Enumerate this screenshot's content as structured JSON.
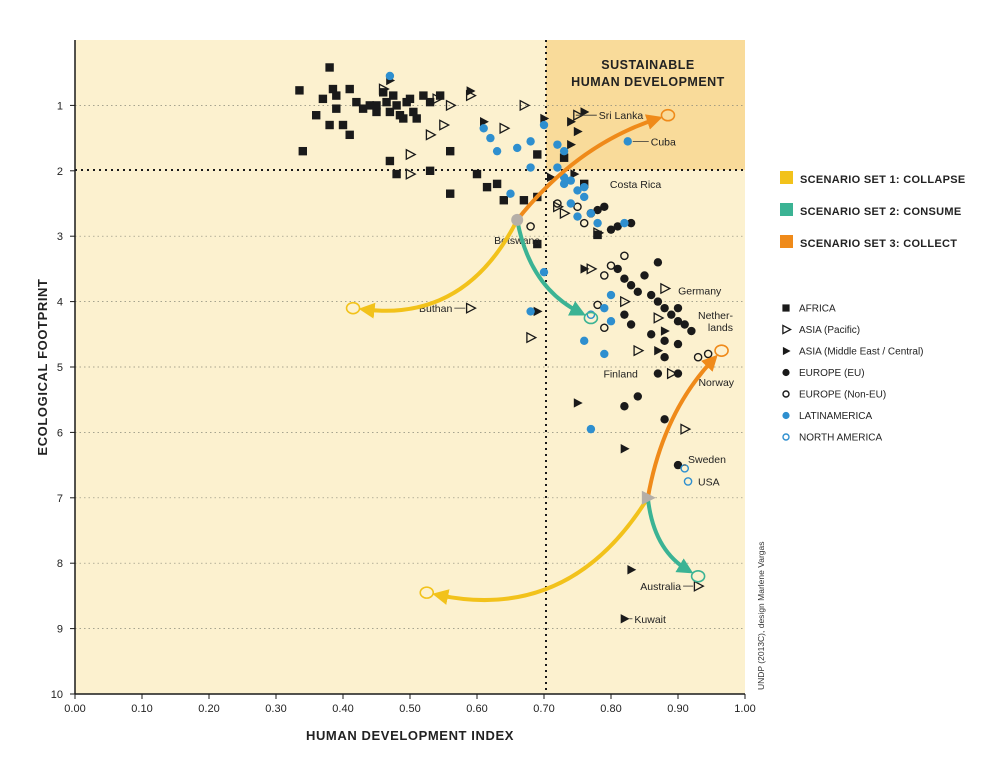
{
  "chart_data": {
    "type": "scatter",
    "xlabel": "HUMAN DEVELOPMENT INDEX",
    "ylabel": "ECOLOGICAL FOOTPRINT",
    "xlim": [
      0,
      1
    ],
    "ylim": [
      10,
      0
    ],
    "y_inverted": true,
    "x_ticks": [
      "0.00",
      "0.10",
      "0.20",
      "0.30",
      "0.40",
      "0.50",
      "0.60",
      "0.70",
      "0.80",
      "0.90",
      "1.00"
    ],
    "y_ticks": [
      "1",
      "2",
      "3",
      "4",
      "5",
      "6",
      "7",
      "8",
      "9",
      "10"
    ],
    "thresholds": {
      "hdi": 0.71,
      "footprint": 2
    },
    "sustainable_label": [
      "SUSTAINABLE",
      "HUMAN DEVELOPMENT"
    ],
    "credit": "UNDP (2013C), design Marlene Vargas",
    "scenario_legend": [
      {
        "label": "SCENARIO SET 1: COLLAPSE",
        "color": "#F2C21B"
      },
      {
        "label": "SCENARIO SET 2: CONSUME",
        "color": "#3BB394"
      },
      {
        "label": "SCENARIO SET 3: COLLECT",
        "color": "#EF8A1A"
      }
    ],
    "region_legend": [
      {
        "key": "africa",
        "label": "AFRICA",
        "marker": "square-filled",
        "color": "#1a1a1a"
      },
      {
        "key": "asia_pacific",
        "label": "ASIA (Pacific)",
        "marker": "triangle-open",
        "color": "#1a1a1a"
      },
      {
        "key": "asia_me",
        "label": "ASIA (Middle East / Central)",
        "marker": "triangle-filled",
        "color": "#1a1a1a"
      },
      {
        "key": "europe_eu",
        "label": "EUROPE (EU)",
        "marker": "circle-filled",
        "color": "#1a1a1a"
      },
      {
        "key": "europe_noneu",
        "label": "EUROPE (Non-EU)",
        "marker": "circle-open",
        "color": "#1a1a1a"
      },
      {
        "key": "latin",
        "label": "LATINAMERICA",
        "marker": "circle-filled",
        "color": "#2E8FCF"
      },
      {
        "key": "north_am",
        "label": "NORTH AMERICA",
        "marker": "circle-open",
        "color": "#2E8FCF"
      }
    ],
    "series": {
      "africa": [
        [
          0.38,
          0.42
        ],
        [
          0.335,
          0.77
        ],
        [
          0.36,
          1.15
        ],
        [
          0.37,
          0.9
        ],
        [
          0.385,
          0.75
        ],
        [
          0.39,
          0.85
        ],
        [
          0.39,
          1.05
        ],
        [
          0.4,
          1.3
        ],
        [
          0.41,
          0.75
        ],
        [
          0.42,
          0.95
        ],
        [
          0.43,
          1.05
        ],
        [
          0.44,
          1.0
        ],
        [
          0.45,
          1.0
        ],
        [
          0.46,
          0.8
        ],
        [
          0.465,
          0.95
        ],
        [
          0.47,
          1.1
        ],
        [
          0.475,
          0.85
        ],
        [
          0.48,
          1.0
        ],
        [
          0.485,
          1.15
        ],
        [
          0.49,
          1.2
        ],
        [
          0.495,
          0.95
        ],
        [
          0.5,
          0.9
        ],
        [
          0.505,
          1.1
        ],
        [
          0.51,
          1.2
        ],
        [
          0.52,
          0.85
        ],
        [
          0.53,
          0.95
        ],
        [
          0.545,
          0.85
        ],
        [
          0.41,
          1.45
        ],
        [
          0.34,
          1.7
        ],
        [
          0.38,
          1.3
        ],
        [
          0.47,
          1.85
        ],
        [
          0.48,
          2.05
        ],
        [
          0.53,
          2.0
        ],
        [
          0.56,
          1.7
        ],
        [
          0.56,
          2.35
        ],
        [
          0.6,
          2.05
        ],
        [
          0.615,
          2.25
        ],
        [
          0.63,
          2.2
        ],
        [
          0.64,
          2.45
        ],
        [
          0.67,
          2.45
        ],
        [
          0.69,
          2.4
        ],
        [
          0.69,
          1.75
        ],
        [
          0.73,
          1.8
        ],
        [
          0.69,
          3.12
        ],
        [
          0.78,
          2.98
        ],
        [
          0.76,
          2.2
        ],
        [
          0.45,
          1.1
        ]
      ],
      "asia_pacific": [
        [
          0.46,
          0.75
        ],
        [
          0.54,
          0.9
        ],
        [
          0.56,
          1.0
        ],
        [
          0.59,
          0.85
        ],
        [
          0.67,
          1.0
        ],
        [
          0.75,
          1.15
        ],
        [
          0.53,
          1.45
        ],
        [
          0.55,
          1.3
        ],
        [
          0.5,
          1.75
        ],
        [
          0.5,
          2.05
        ],
        [
          0.64,
          1.35
        ],
        [
          0.59,
          4.1
        ],
        [
          0.72,
          2.55
        ],
        [
          0.73,
          2.65
        ],
        [
          0.68,
          4.55
        ],
        [
          0.82,
          4.0
        ],
        [
          0.84,
          4.75
        ],
        [
          0.88,
          3.8
        ],
        [
          0.89,
          5.1
        ],
        [
          0.91,
          5.95
        ],
        [
          0.93,
          8.35
        ],
        [
          0.77,
          3.5
        ],
        [
          0.78,
          2.95
        ],
        [
          0.87,
          4.25
        ]
      ],
      "asia_me": [
        [
          0.47,
          0.62
        ],
        [
          0.59,
          0.78
        ],
        [
          0.61,
          1.25
        ],
        [
          0.7,
          1.2
        ],
        [
          0.74,
          1.25
        ],
        [
          0.75,
          1.4
        ],
        [
          0.76,
          1.1
        ],
        [
          0.71,
          2.1
        ],
        [
          0.74,
          1.6
        ],
        [
          0.69,
          4.15
        ],
        [
          0.75,
          5.55
        ],
        [
          0.82,
          6.25
        ],
        [
          0.83,
          8.1
        ],
        [
          0.82,
          8.85
        ],
        [
          0.76,
          3.5
        ],
        [
          0.88,
          4.45
        ],
        [
          0.87,
          4.75
        ],
        [
          0.745,
          2.05
        ]
      ],
      "europe_eu": [
        [
          0.78,
          2.6
        ],
        [
          0.79,
          2.55
        ],
        [
          0.8,
          2.9
        ],
        [
          0.81,
          3.5
        ],
        [
          0.82,
          3.65
        ],
        [
          0.83,
          3.75
        ],
        [
          0.84,
          3.85
        ],
        [
          0.85,
          3.6
        ],
        [
          0.86,
          3.9
        ],
        [
          0.87,
          3.4
        ],
        [
          0.87,
          4.0
        ],
        [
          0.88,
          4.1
        ],
        [
          0.89,
          4.2
        ],
        [
          0.9,
          4.1
        ],
        [
          0.9,
          4.3
        ],
        [
          0.91,
          4.35
        ],
        [
          0.92,
          4.45
        ],
        [
          0.86,
          4.5
        ],
        [
          0.88,
          4.6
        ],
        [
          0.9,
          4.65
        ],
        [
          0.88,
          4.85
        ],
        [
          0.87,
          5.1
        ],
        [
          0.9,
          5.1
        ],
        [
          0.84,
          5.45
        ],
        [
          0.82,
          5.6
        ],
        [
          0.88,
          5.8
        ],
        [
          0.9,
          6.5
        ],
        [
          0.81,
          2.85
        ],
        [
          0.83,
          2.8
        ],
        [
          0.82,
          4.2
        ],
        [
          0.83,
          4.35
        ]
      ],
      "europe_noneu": [
        [
          0.72,
          2.5
        ],
        [
          0.75,
          2.55
        ],
        [
          0.76,
          2.8
        ],
        [
          0.77,
          2.65
        ],
        [
          0.79,
          3.6
        ],
        [
          0.8,
          3.45
        ],
        [
          0.82,
          3.3
        ],
        [
          0.78,
          4.05
        ],
        [
          0.79,
          4.4
        ],
        [
          0.93,
          4.85
        ],
        [
          0.945,
          4.8
        ],
        [
          0.68,
          2.85
        ]
      ],
      "latin": [
        [
          0.47,
          0.55
        ],
        [
          0.61,
          1.35
        ],
        [
          0.62,
          1.5
        ],
        [
          0.63,
          1.7
        ],
        [
          0.66,
          1.65
        ],
        [
          0.68,
          1.55
        ],
        [
          0.7,
          1.3
        ],
        [
          0.72,
          1.6
        ],
        [
          0.73,
          1.7
        ],
        [
          0.72,
          1.95
        ],
        [
          0.73,
          2.1
        ],
        [
          0.74,
          2.15
        ],
        [
          0.75,
          2.3
        ],
        [
          0.76,
          2.4
        ],
        [
          0.74,
          2.5
        ],
        [
          0.75,
          2.7
        ],
        [
          0.77,
          2.65
        ],
        [
          0.78,
          2.8
        ],
        [
          0.76,
          2.25
        ],
        [
          0.73,
          2.2
        ],
        [
          0.79,
          4.1
        ],
        [
          0.8,
          4.3
        ],
        [
          0.76,
          4.6
        ],
        [
          0.79,
          4.8
        ],
        [
          0.7,
          3.55
        ],
        [
          0.8,
          3.9
        ],
        [
          0.82,
          2.8
        ],
        [
          0.68,
          1.95
        ],
        [
          0.825,
          1.55
        ],
        [
          0.68,
          4.15
        ],
        [
          0.77,
          5.95
        ],
        [
          0.65,
          2.35
        ]
      ],
      "north_am": [
        [
          0.91,
          6.55
        ],
        [
          0.915,
          6.75
        ],
        [
          0.77,
          4.2
        ]
      ]
    },
    "annotations": [
      {
        "text": "Sri Lanka",
        "x": 0.74,
        "y": 1.15
      },
      {
        "text": "Cuba",
        "x": 0.825,
        "y": 1.55
      },
      {
        "text": "Costa Rica",
        "x": 0.77,
        "y": 2.2
      },
      {
        "text": "Botswana",
        "x": 0.66,
        "y": 2.75
      },
      {
        "text": "Buthan",
        "x": 0.59,
        "y": 4.1
      },
      {
        "text": "Germany",
        "x": 0.89,
        "y": 4.2
      },
      {
        "text": "Nether-",
        "x": 0.9,
        "y": 4.3
      },
      {
        "text": "lands",
        "x": 0.9,
        "y": 4.3
      },
      {
        "text": "Finland",
        "x": 0.87,
        "y": 5.1
      },
      {
        "text": "Norway",
        "x": 0.944,
        "y": 4.8
      },
      {
        "text": "Sweden",
        "x": 0.9,
        "y": 6.5
      },
      {
        "text": "USA",
        "x": 0.915,
        "y": 6.75
      },
      {
        "text": "Australia",
        "x": 0.93,
        "y": 8.35
      },
      {
        "text": "Kuwait",
        "x": 0.82,
        "y": 8.85
      }
    ],
    "scenarios": [
      {
        "origin": [
          0.66,
          2.75
        ],
        "origin_marker": "circle",
        "arrows": [
          {
            "scenario": "collapse",
            "to": [
              0.415,
              4.1
            ]
          },
          {
            "scenario": "consume",
            "to": [
              0.77,
              4.25
            ]
          },
          {
            "scenario": "collect",
            "to": [
              0.885,
              1.15
            ]
          }
        ]
      },
      {
        "origin": [
          0.855,
          7.0
        ],
        "origin_marker": "triangle",
        "arrows": [
          {
            "scenario": "collapse",
            "to": [
              0.525,
              8.45
            ]
          },
          {
            "scenario": "consume",
            "to": [
              0.93,
              8.2
            ]
          },
          {
            "scenario": "collect",
            "to": [
              0.965,
              4.75
            ]
          }
        ]
      }
    ]
  }
}
